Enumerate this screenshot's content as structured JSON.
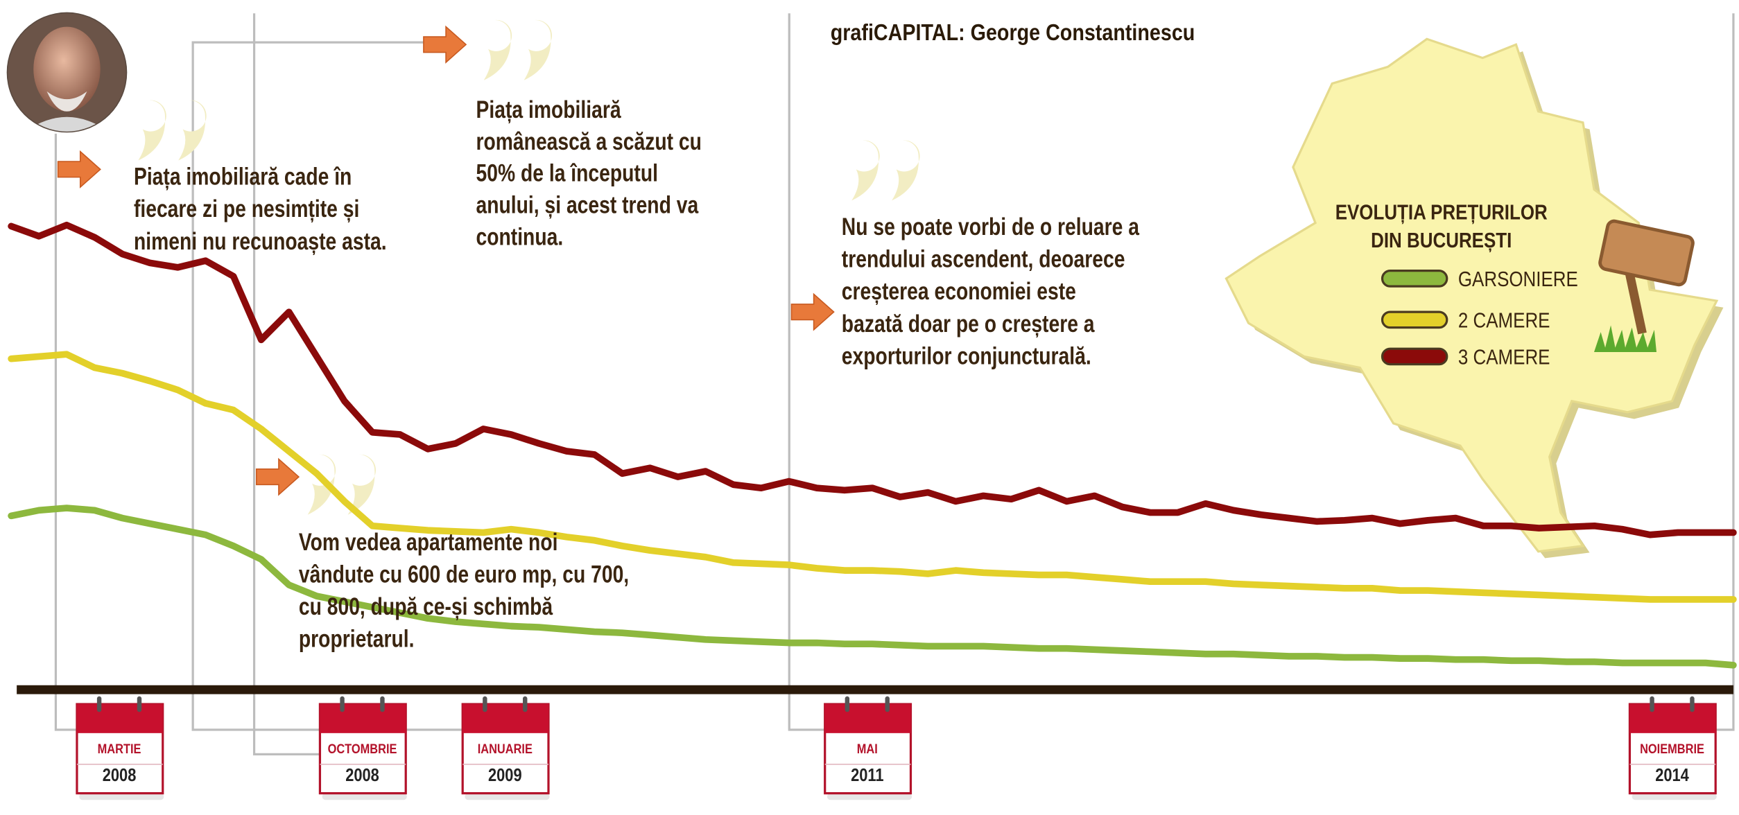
{
  "chart_data": {
    "type": "line",
    "credit": "grafiCAPITAL: George Constantinescu",
    "legend_title": [
      "EVOLUȚIA PREȚURILOR",
      "DIN BUCUREȘTI"
    ],
    "ylim": [
      0,
      100
    ],
    "series": [
      {
        "name": "GARSONIERE",
        "color": "#8db83e",
        "values": [
          31.2,
          32.2,
          32.6,
          32.2,
          30.8,
          29.8,
          28.8,
          27.8,
          25.8,
          23.4,
          18.8,
          16.8,
          15.8,
          14.8,
          13.8,
          12.8,
          12.2,
          11.8,
          11.4,
          11.2,
          10.8,
          10.4,
          10.2,
          9.8,
          9.4,
          9,
          8.8,
          8.6,
          8.4,
          8.4,
          8.2,
          8.2,
          8,
          7.8,
          7.8,
          7.8,
          7.6,
          7.4,
          7.4,
          7.2,
          7,
          6.8,
          6.6,
          6.4,
          6.4,
          6.2,
          6,
          6,
          5.8,
          5.8,
          5.6,
          5.6,
          5.4,
          5.4,
          5.2,
          5.2,
          5,
          5,
          4.8,
          4.8,
          4.8,
          4.8,
          4.4
        ]
      },
      {
        "name": "2 CAMERE",
        "color": "#e3d02a",
        "values": [
          59.4,
          59.8,
          60.2,
          57.8,
          56.8,
          55.4,
          53.8,
          51.4,
          50.2,
          46.8,
          42.8,
          38.8,
          33.8,
          29.4,
          29,
          28.6,
          28.4,
          28.2,
          28.8,
          28.2,
          27.4,
          26.8,
          25.8,
          25,
          24.4,
          23.8,
          22.8,
          22.6,
          22.4,
          21.8,
          21.4,
          21.4,
          21.2,
          20.8,
          21.4,
          21,
          20.8,
          20.6,
          20.6,
          20.2,
          19.8,
          19.4,
          19.4,
          19.4,
          19,
          18.8,
          18.6,
          18.4,
          18.2,
          18.2,
          17.8,
          17.8,
          17.6,
          17.4,
          17.2,
          17,
          16.8,
          16.6,
          16.4,
          16.2,
          16.2,
          16.2,
          16.2
        ]
      },
      {
        "name": "3 CAMERE",
        "color": "#8b0a0a",
        "values": [
          83.2,
          81.4,
          83.4,
          81.2,
          78.2,
          76.6,
          75.8,
          77,
          74.2,
          62.8,
          67.8,
          59.8,
          51.8,
          46.2,
          45.8,
          43.2,
          44.2,
          46.8,
          45.8,
          44.2,
          42.8,
          42.2,
          38.8,
          39.8,
          38.2,
          39.2,
          36.8,
          36.2,
          37.4,
          36.2,
          35.8,
          36.2,
          34.6,
          35.4,
          33.8,
          34.8,
          34.2,
          35.8,
          33.8,
          34.8,
          32.8,
          31.8,
          31.8,
          33.4,
          32.2,
          31.4,
          30.8,
          30.2,
          30.4,
          30.8,
          29.8,
          30.4,
          30.8,
          29.4,
          29.4,
          29,
          29.2,
          29.4,
          28.8,
          27.8,
          28.2,
          28.2,
          28.2
        ]
      }
    ],
    "annotations": [
      {
        "lines": [
          "Piața imobiliară cade în",
          "fiecare zi pe nesimțite și",
          "nimeni nu recunoaște asta."
        ]
      },
      {
        "lines": [
          "Piața imobiliară",
          "românească a scăzut cu",
          "50% de la începutul",
          "anului, și acest trend va",
          "continua."
        ]
      },
      {
        "lines": [
          "Vom vedea apartamente noi",
          "vândute cu 600 de euro mp, cu 700,",
          "cu 800, după ce-și schimbă",
          "proprietarul."
        ]
      },
      {
        "lines": [
          "Nu se poate vorbi de o reluare a",
          "trendului ascendent, deoarece",
          "creșterea economiei este",
          "bazată doar pe o creștere a",
          "exporturilor conjuncturală."
        ]
      }
    ],
    "markers": [
      {
        "month": "MARTIE",
        "year": "2008"
      },
      {
        "month": "OCTOMBRIE",
        "year": "2008"
      },
      {
        "month": "IANUARIE",
        "year": "2009"
      },
      {
        "month": "MAI",
        "year": "2011"
      },
      {
        "month": "NOIEMBRIE",
        "year": "2014"
      }
    ]
  }
}
